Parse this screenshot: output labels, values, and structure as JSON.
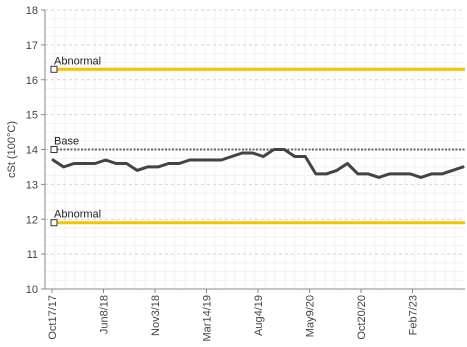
{
  "chart_data": {
    "type": "line",
    "ylabel": "cSt (100°C)",
    "xlabel": "",
    "title": "",
    "ylim": [
      10,
      18
    ],
    "yticks": [
      10,
      11,
      12,
      13,
      14,
      15,
      16,
      17,
      18
    ],
    "x_tick_labels": [
      "Oct17/17",
      "Jun8/18",
      "Nov3/18",
      "Mar14/19",
      "Aug4/19",
      "May9/20",
      "Oct20/20",
      "Feb7/23"
    ],
    "grid": true,
    "series": [
      {
        "color": "#444444",
        "values": [
          13.7,
          13.5,
          13.6,
          13.6,
          13.6,
          13.7,
          13.6,
          13.6,
          13.4,
          13.5,
          13.5,
          13.6,
          13.6,
          13.7,
          13.7,
          13.7,
          13.7,
          13.8,
          13.9,
          13.9,
          13.8,
          14.0,
          14.0,
          13.8,
          13.8,
          13.3,
          13.3,
          13.4,
          13.6,
          13.3,
          13.3,
          13.2,
          13.3,
          13.3,
          13.3,
          13.2,
          13.3,
          13.3,
          13.4,
          13.5
        ]
      }
    ],
    "reference_lines": [
      {
        "label": "Abnormal",
        "value": 16.3,
        "color": "#F5C400",
        "style": "solid"
      },
      {
        "label": "Base",
        "value": 14.0,
        "color": "#666666",
        "style": "dotted"
      },
      {
        "label": "Abnormal",
        "value": 11.9,
        "color": "#F5C400",
        "style": "solid"
      }
    ]
  }
}
